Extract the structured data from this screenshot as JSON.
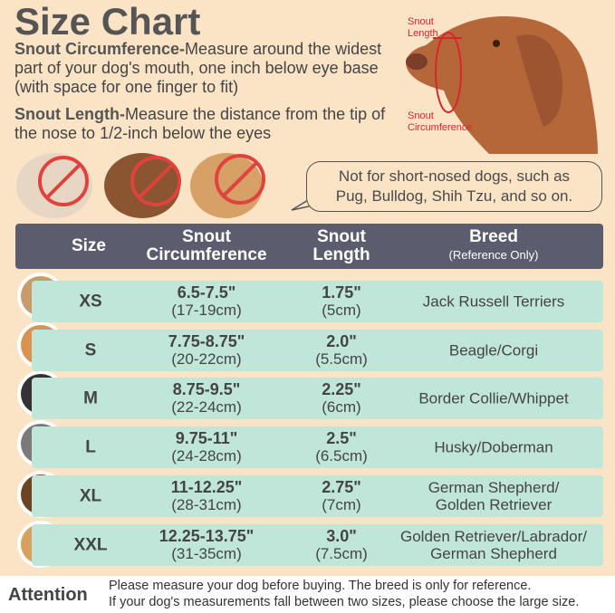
{
  "title": "Size Chart",
  "instructions": [
    {
      "heading": "Snout Circumference-",
      "text": "Measure around the widest part of your dog's mouth, one inch below eye base (with space for one finger to fit)"
    },
    {
      "heading": "Snout Length-",
      "text": "Measure the distance from the tip of the nose to 1/2-inch below the eyes"
    }
  ],
  "diagram": {
    "length_label": "Snout\nLength",
    "circumference_label": "Snout\nCircumference"
  },
  "note": "Not for short-nosed dogs, such as\nPug, Bulldog, Shih Tzu, and so on.",
  "table": {
    "headers": [
      "Size",
      "Snout\nCircumference",
      "Snout\nLength",
      "Breed"
    ],
    "breed_subheader": "(Reference Only)",
    "rows": [
      {
        "size": "XS",
        "circumference": "6.5-7.5\"",
        "circumference_cm": "(17-19cm)",
        "length": "1.75\"",
        "length_cm": "(5cm)",
        "breed": "Jack Russell Terriers"
      },
      {
        "size": "S",
        "circumference": "7.75-8.75\"",
        "circumference_cm": "(20-22cm)",
        "length": "2.0\"",
        "length_cm": "(5.5cm)",
        "breed": "Beagle/Corgi"
      },
      {
        "size": "M",
        "circumference": "8.75-9.5\"",
        "circumference_cm": "(22-24cm)",
        "length": "2.25\"",
        "length_cm": "(6cm)",
        "breed": "Border Collie/Whippet"
      },
      {
        "size": "L",
        "circumference": "9.75-11\"",
        "circumference_cm": "(24-28cm)",
        "length": "2.5\"",
        "length_cm": "(6.5cm)",
        "breed": "Husky/Doberman"
      },
      {
        "size": "XL",
        "circumference": "11-12.25\"",
        "circumference_cm": "(28-31cm)",
        "length": "2.75\"",
        "length_cm": "(7cm)",
        "breed": "German Shepherd/\nGolden Retriever"
      },
      {
        "size": "XXL",
        "circumference": "12.25-13.75\"",
        "circumference_cm": "(31-35cm)",
        "length": "3.0\"",
        "length_cm": "(7.5cm)",
        "breed": "Golden Retriever/Labrador/\nGerman Shepherd"
      }
    ]
  },
  "attention": {
    "label": "Attention",
    "lines": [
      "Please measure your dog before buying. The breed is only for reference.",
      "If your dog's measurements fall between two sizes, please choose the large size."
    ]
  }
}
